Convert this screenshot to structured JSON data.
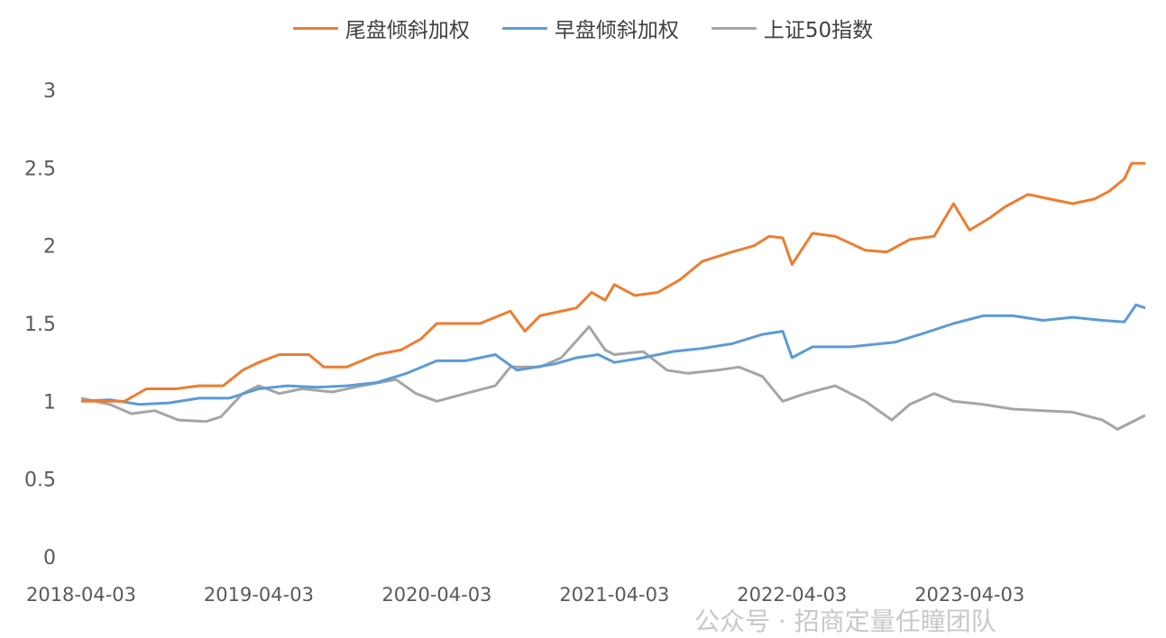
{
  "chart_data": {
    "type": "line",
    "title": "",
    "xlabel": "",
    "ylabel": "",
    "ylim": [
      0,
      3
    ],
    "yticks": [
      "0",
      "0.5",
      "1",
      "1.5",
      "2",
      "2.5",
      "3"
    ],
    "xticks": [
      "2018-04-03",
      "2019-04-03",
      "2020-04-03",
      "2021-04-03",
      "2022-04-03",
      "2023-04-03"
    ],
    "x_range": [
      "2018-04-03",
      "2024-03-29"
    ],
    "grid": false,
    "legend_position": "top",
    "series": [
      {
        "name": "尾盘倾斜加权",
        "color": "#ED7D31",
        "points": [
          [
            "2018-04-03",
            1.0
          ],
          [
            "2018-07-01",
            1.0
          ],
          [
            "2018-08-15",
            1.08
          ],
          [
            "2018-10-15",
            1.08
          ],
          [
            "2018-12-01",
            1.1
          ],
          [
            "2019-01-20",
            1.1
          ],
          [
            "2019-03-01",
            1.2
          ],
          [
            "2019-04-03",
            1.25
          ],
          [
            "2019-05-15",
            1.3
          ],
          [
            "2019-07-15",
            1.3
          ],
          [
            "2019-08-15",
            1.22
          ],
          [
            "2019-10-01",
            1.22
          ],
          [
            "2019-12-01",
            1.3
          ],
          [
            "2020-01-20",
            1.33
          ],
          [
            "2020-03-01",
            1.4
          ],
          [
            "2020-04-03",
            1.5
          ],
          [
            "2020-05-15",
            1.5
          ],
          [
            "2020-07-01",
            1.5
          ],
          [
            "2020-09-01",
            1.58
          ],
          [
            "2020-10-01",
            1.45
          ],
          [
            "2020-11-01",
            1.55
          ],
          [
            "2021-01-15",
            1.6
          ],
          [
            "2021-02-15",
            1.7
          ],
          [
            "2021-03-15",
            1.65
          ],
          [
            "2021-04-03",
            1.75
          ],
          [
            "2021-05-15",
            1.68
          ],
          [
            "2021-07-01",
            1.7
          ],
          [
            "2021-08-15",
            1.78
          ],
          [
            "2021-10-01",
            1.9
          ],
          [
            "2021-12-01",
            1.96
          ],
          [
            "2022-01-15",
            2.0
          ],
          [
            "2022-02-15",
            2.06
          ],
          [
            "2022-03-15",
            2.05
          ],
          [
            "2022-04-03",
            1.88
          ],
          [
            "2022-05-15",
            2.08
          ],
          [
            "2022-07-01",
            2.06
          ],
          [
            "2022-09-01",
            1.97
          ],
          [
            "2022-10-15",
            1.96
          ],
          [
            "2022-12-01",
            2.04
          ],
          [
            "2023-01-20",
            2.06
          ],
          [
            "2023-03-01",
            2.27
          ],
          [
            "2023-04-03",
            2.1
          ],
          [
            "2023-05-15",
            2.18
          ],
          [
            "2023-06-15",
            2.25
          ],
          [
            "2023-08-01",
            2.33
          ],
          [
            "2023-09-15",
            2.3
          ],
          [
            "2023-11-01",
            2.27
          ],
          [
            "2023-12-15",
            2.3
          ],
          [
            "2024-01-15",
            2.35
          ],
          [
            "2024-02-15",
            2.43
          ],
          [
            "2024-03-01",
            2.53
          ],
          [
            "2024-03-29",
            2.53
          ]
        ]
      },
      {
        "name": "早盘倾斜加权",
        "color": "#5B9BD5",
        "points": [
          [
            "2018-04-03",
            1.0
          ],
          [
            "2018-06-01",
            1.01
          ],
          [
            "2018-08-01",
            0.98
          ],
          [
            "2018-10-01",
            0.99
          ],
          [
            "2018-12-01",
            1.02
          ],
          [
            "2019-02-01",
            1.02
          ],
          [
            "2019-04-03",
            1.08
          ],
          [
            "2019-06-01",
            1.1
          ],
          [
            "2019-08-01",
            1.09
          ],
          [
            "2019-10-01",
            1.1
          ],
          [
            "2019-12-01",
            1.12
          ],
          [
            "2020-02-01",
            1.18
          ],
          [
            "2020-04-03",
            1.26
          ],
          [
            "2020-06-01",
            1.26
          ],
          [
            "2020-08-01",
            1.3
          ],
          [
            "2020-09-15",
            1.2
          ],
          [
            "2020-12-01",
            1.24
          ],
          [
            "2021-01-15",
            1.28
          ],
          [
            "2021-03-01",
            1.3
          ],
          [
            "2021-04-03",
            1.25
          ],
          [
            "2021-06-01",
            1.28
          ],
          [
            "2021-08-01",
            1.32
          ],
          [
            "2021-10-01",
            1.34
          ],
          [
            "2021-12-01",
            1.37
          ],
          [
            "2022-02-01",
            1.43
          ],
          [
            "2022-03-15",
            1.45
          ],
          [
            "2022-04-03",
            1.28
          ],
          [
            "2022-05-15",
            1.35
          ],
          [
            "2022-08-01",
            1.35
          ],
          [
            "2022-11-01",
            1.38
          ],
          [
            "2023-01-01",
            1.44
          ],
          [
            "2023-03-01",
            1.5
          ],
          [
            "2023-05-01",
            1.55
          ],
          [
            "2023-07-01",
            1.55
          ],
          [
            "2023-09-01",
            1.52
          ],
          [
            "2023-11-01",
            1.54
          ],
          [
            "2024-01-01",
            1.52
          ],
          [
            "2024-02-15",
            1.51
          ],
          [
            "2024-03-10",
            1.62
          ],
          [
            "2024-03-29",
            1.6
          ]
        ]
      },
      {
        "name": "上证50指数",
        "color": "#A5A5A5",
        "points": [
          [
            "2018-04-03",
            1.02
          ],
          [
            "2018-06-01",
            0.98
          ],
          [
            "2018-07-15",
            0.92
          ],
          [
            "2018-09-01",
            0.94
          ],
          [
            "2018-10-20",
            0.88
          ],
          [
            "2018-12-15",
            0.87
          ],
          [
            "2019-01-15",
            0.9
          ],
          [
            "2019-03-01",
            1.05
          ],
          [
            "2019-04-03",
            1.1
          ],
          [
            "2019-05-15",
            1.05
          ],
          [
            "2019-07-01",
            1.08
          ],
          [
            "2019-09-01",
            1.06
          ],
          [
            "2019-11-01",
            1.1
          ],
          [
            "2020-01-10",
            1.14
          ],
          [
            "2020-02-20",
            1.05
          ],
          [
            "2020-04-03",
            1.0
          ],
          [
            "2020-06-01",
            1.05
          ],
          [
            "2020-08-01",
            1.1
          ],
          [
            "2020-09-01",
            1.22
          ],
          [
            "2020-11-01",
            1.22
          ],
          [
            "2020-12-15",
            1.28
          ],
          [
            "2021-02-10",
            1.48
          ],
          [
            "2021-03-15",
            1.33
          ],
          [
            "2021-04-03",
            1.3
          ],
          [
            "2021-06-01",
            1.32
          ],
          [
            "2021-07-20",
            1.2
          ],
          [
            "2021-09-01",
            1.18
          ],
          [
            "2021-11-01",
            1.2
          ],
          [
            "2021-12-15",
            1.22
          ],
          [
            "2022-02-01",
            1.16
          ],
          [
            "2022-03-15",
            1.0
          ],
          [
            "2022-05-01",
            1.05
          ],
          [
            "2022-07-01",
            1.1
          ],
          [
            "2022-09-01",
            1.0
          ],
          [
            "2022-10-25",
            0.88
          ],
          [
            "2022-12-01",
            0.98
          ],
          [
            "2023-01-20",
            1.05
          ],
          [
            "2023-03-01",
            1.0
          ],
          [
            "2023-05-01",
            0.98
          ],
          [
            "2023-07-01",
            0.95
          ],
          [
            "2023-09-01",
            0.94
          ],
          [
            "2023-11-01",
            0.93
          ],
          [
            "2024-01-01",
            0.88
          ],
          [
            "2024-02-01",
            0.82
          ],
          [
            "2024-03-29",
            0.91
          ]
        ]
      }
    ]
  },
  "watermark": "公众号 · 招商定量任瞳团队"
}
